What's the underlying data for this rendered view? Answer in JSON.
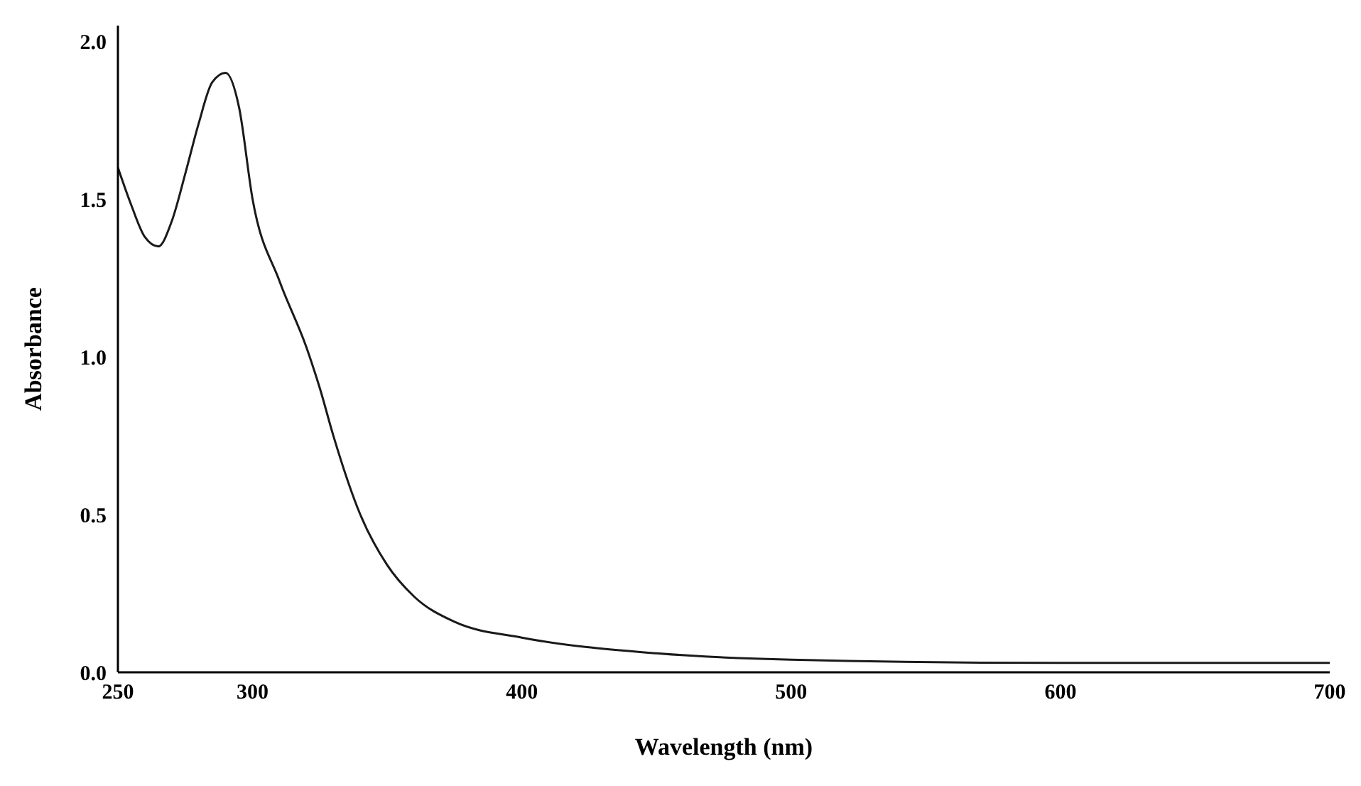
{
  "chart_data": {
    "type": "line",
    "xlabel": "Wavelength (nm)",
    "ylabel": "Absorbance",
    "x": [
      250,
      255,
      260,
      265,
      270,
      275,
      280,
      285,
      290,
      295,
      300,
      310,
      320,
      325,
      330,
      340,
      350,
      360,
      375,
      400,
      450,
      500,
      600,
      700
    ],
    "series": [
      {
        "color": "#1a1a1a",
        "values": [
          1.6,
          1.48,
          1.38,
          1.35,
          1.43,
          1.58,
          1.74,
          1.87,
          1.9,
          1.79,
          1.5,
          1.24,
          1.03,
          0.9,
          0.75,
          0.5,
          0.34,
          0.24,
          0.16,
          0.11,
          0.06,
          0.04,
          0.03,
          0.03
        ]
      }
    ],
    "xlim": [
      250,
      700
    ],
    "xticks": [
      250,
      300,
      400,
      500,
      600,
      700
    ],
    "ylim": [
      0,
      2.05
    ],
    "yticks": [
      {
        "value": 0,
        "label": "0.0"
      },
      0.5,
      {
        "value": 1,
        "label": "1.0"
      },
      1.5,
      {
        "value": 2,
        "label": "2.0"
      }
    ],
    "grid": false,
    "legend": false,
    "marker": "none",
    "line_style": "solid"
  }
}
